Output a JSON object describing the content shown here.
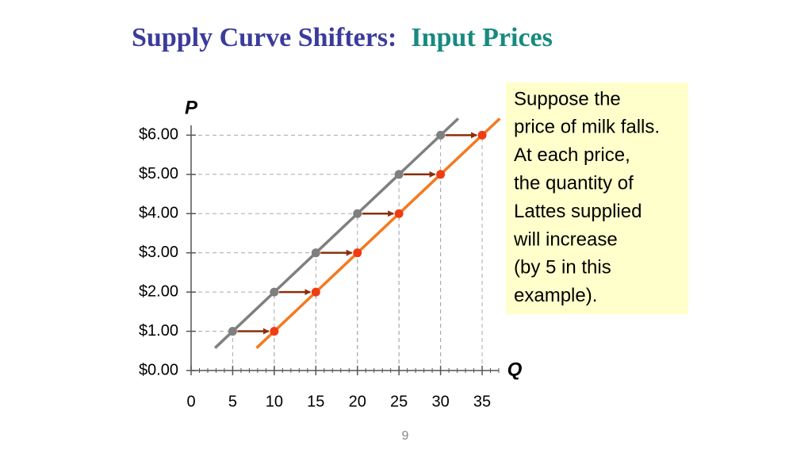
{
  "title": "Supply Curve Shifters:",
  "title_highlight": "Input Prices",
  "page_number": "9",
  "chart_data": {
    "type": "line",
    "x_label": "Q",
    "y_label": "P",
    "xlim": [
      0,
      37
    ],
    "ylim": [
      0,
      6.25
    ],
    "xticks": [
      0,
      5,
      10,
      15,
      20,
      25,
      30,
      35
    ],
    "yticks": [
      {
        "value": 0,
        "label": "$0.00"
      },
      {
        "value": 1,
        "label": "$1.00"
      },
      {
        "value": 2,
        "label": "$2.00"
      },
      {
        "value": 3,
        "label": "$3.00"
      },
      {
        "value": 4,
        "label": "$4.00"
      },
      {
        "value": 5,
        "label": "$5.00"
      },
      {
        "value": 6,
        "label": "$6.00"
      }
    ],
    "series": [
      {
        "color": "#7f7f7f",
        "marker_color": "#7f7f7f",
        "x": [
          5,
          10,
          15,
          20,
          25,
          30
        ],
        "values": [
          1,
          2,
          3,
          4,
          5,
          6
        ]
      },
      {
        "color": "#f47920",
        "marker_color": "#f03c12",
        "x": [
          10,
          15,
          20,
          25,
          30,
          35
        ],
        "values": [
          1,
          2,
          3,
          4,
          5,
          6
        ]
      }
    ],
    "arrow_color": "#8b2e0c",
    "annotation": [
      "Suppose the",
      "price of milk falls.",
      "At each price,",
      "the quantity of",
      "Lattes supplied",
      "will increase",
      "(by 5 in this",
      "example)."
    ]
  }
}
